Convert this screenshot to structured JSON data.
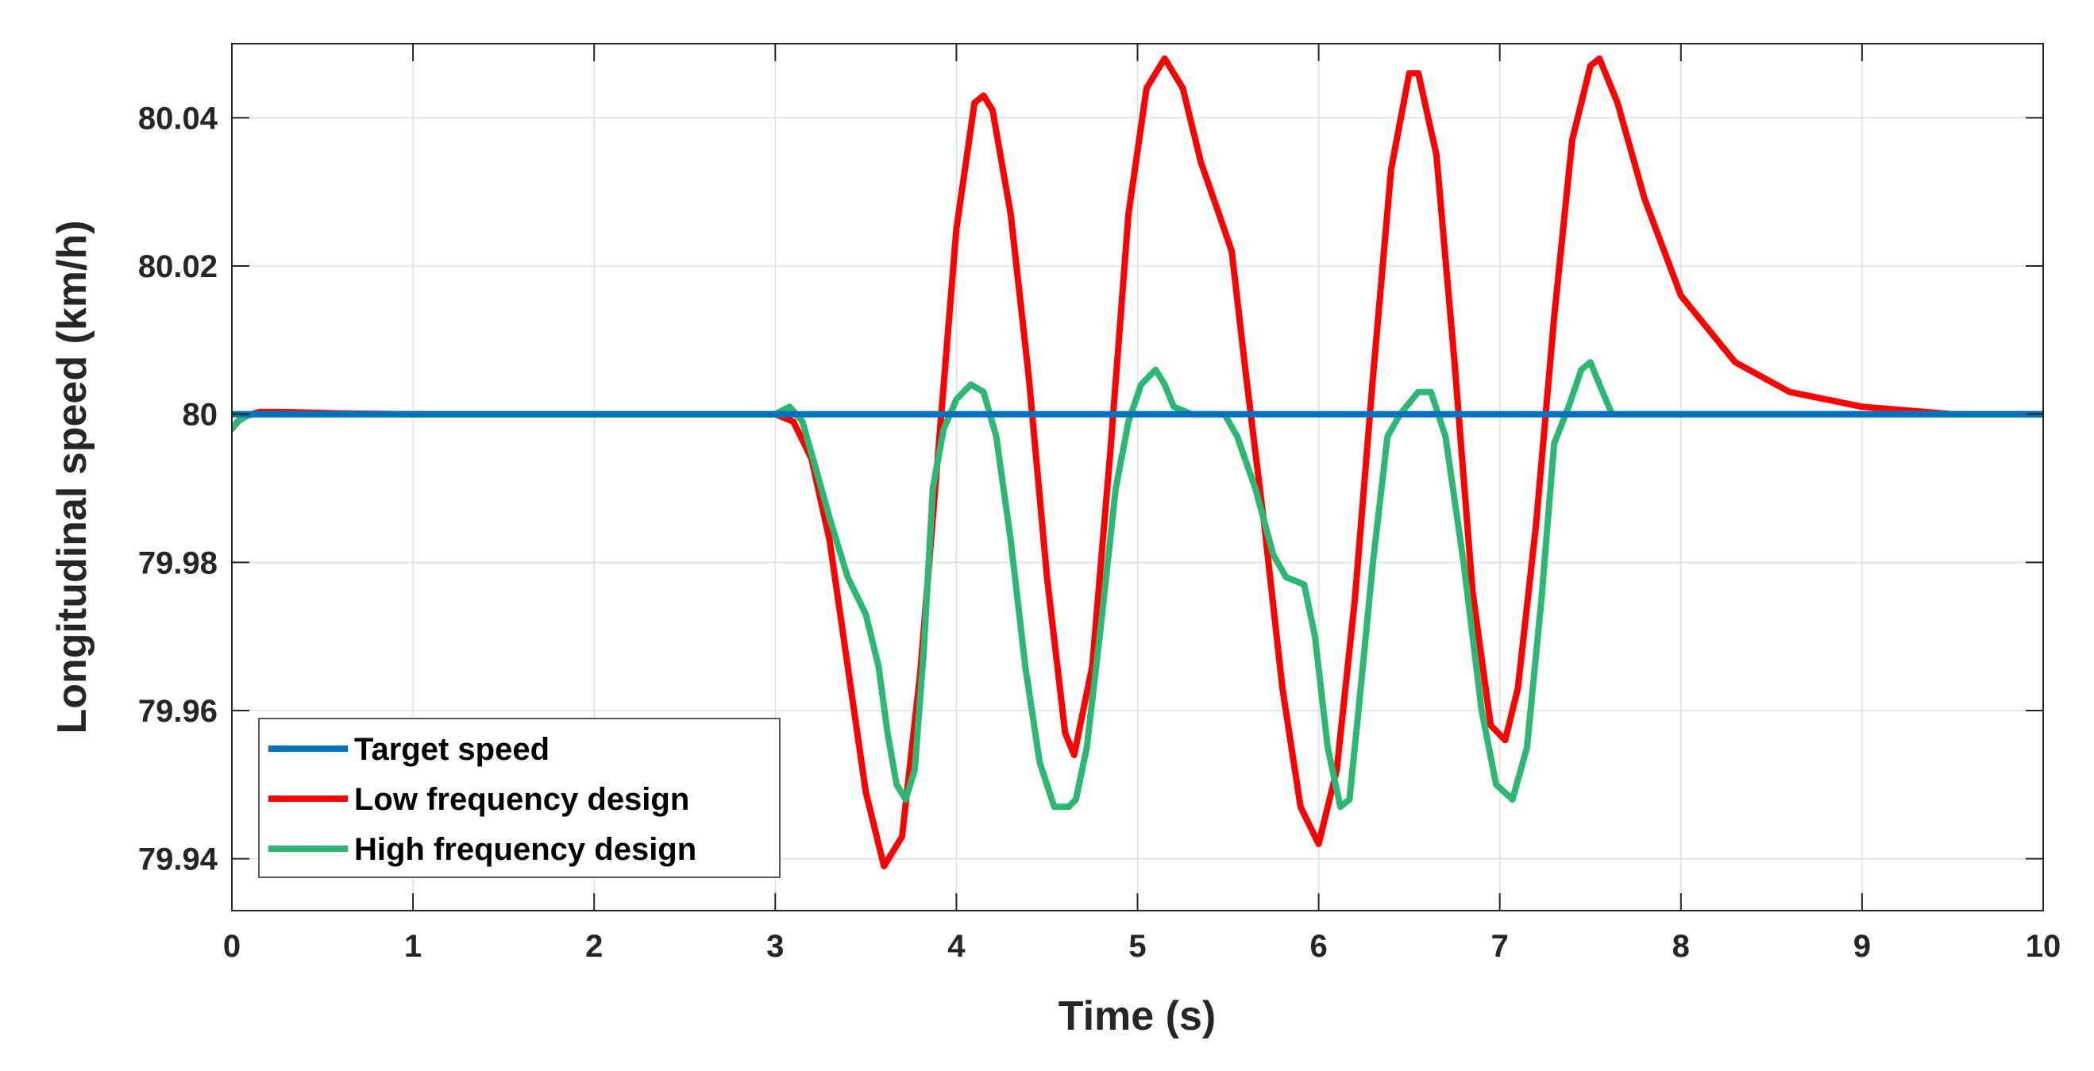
{
  "chart_data": {
    "type": "line",
    "title": "",
    "xlabel": "Time (s)",
    "ylabel": "Longitudinal speed (km/h)",
    "xlim": [
      0,
      10
    ],
    "ylim": [
      79.933,
      80.05
    ],
    "xticks": [
      0,
      1,
      2,
      3,
      4,
      5,
      6,
      7,
      8,
      9,
      10
    ],
    "yticks": [
      79.94,
      79.96,
      79.98,
      80,
      80.02,
      80.04
    ],
    "xtick_labels": [
      "0",
      "1",
      "2",
      "3",
      "4",
      "5",
      "6",
      "7",
      "8",
      "9",
      "10"
    ],
    "ytick_labels": [
      "79.94",
      "79.96",
      "79.98",
      "80",
      "80.02",
      "80.04"
    ],
    "grid": true,
    "legend_location": "bottom-left",
    "series": [
      {
        "name": "Target speed",
        "color": "#0072BD",
        "x": [
          0,
          10
        ],
        "y": [
          80.0,
          80.0
        ]
      },
      {
        "name": "Low frequency design",
        "color": "#FF0000",
        "x": [
          0,
          0.05,
          0.15,
          0.3,
          0.6,
          1,
          3.0,
          3.1,
          3.2,
          3.3,
          3.4,
          3.5,
          3.6,
          3.7,
          3.8,
          3.9,
          4.0,
          4.1,
          4.15,
          4.2,
          4.3,
          4.4,
          4.5,
          4.6,
          4.65,
          4.75,
          4.85,
          4.95,
          5.05,
          5.15,
          5.25,
          5.35,
          5.45,
          5.52,
          5.6,
          5.7,
          5.8,
          5.9,
          6.0,
          6.1,
          6.2,
          6.3,
          6.4,
          6.5,
          6.55,
          6.65,
          6.75,
          6.85,
          6.95,
          7.03,
          7.1,
          7.2,
          7.3,
          7.4,
          7.5,
          7.55,
          7.65,
          7.8,
          8.0,
          8.3,
          8.6,
          9.0,
          9.5,
          10
        ],
        "y": [
          79.998,
          79.9995,
          80.0003,
          80.0003,
          80.0001,
          80.0,
          80.0,
          79.999,
          79.994,
          79.983,
          79.966,
          79.949,
          79.939,
          79.943,
          79.965,
          79.995,
          80.025,
          80.042,
          80.043,
          80.041,
          80.027,
          80.005,
          79.978,
          79.957,
          79.954,
          79.966,
          79.995,
          80.027,
          80.044,
          80.048,
          80.044,
          80.034,
          80.027,
          80.022,
          80.005,
          79.985,
          79.963,
          79.947,
          79.942,
          79.952,
          79.975,
          80.005,
          80.033,
          80.046,
          80.046,
          80.035,
          80.007,
          79.976,
          79.958,
          79.956,
          79.963,
          79.985,
          80.013,
          80.037,
          80.047,
          80.048,
          80.042,
          80.029,
          80.016,
          80.007,
          80.003,
          80.001,
          80.0,
          80.0
        ]
      },
      {
        "name": "High frequency design",
        "color": "#2DB775",
        "x": [
          0,
          0.03,
          0.1,
          0.3,
          1,
          3.0,
          3.08,
          3.15,
          3.22,
          3.3,
          3.4,
          3.5,
          3.57,
          3.62,
          3.67,
          3.72,
          3.77,
          3.82,
          3.87,
          3.93,
          4.0,
          4.08,
          4.15,
          4.22,
          4.3,
          4.38,
          4.46,
          4.54,
          4.62,
          4.66,
          4.72,
          4.8,
          4.88,
          4.95,
          5.02,
          5.1,
          5.15,
          5.2,
          5.3,
          5.4,
          5.48,
          5.55,
          5.65,
          5.75,
          5.82,
          5.92,
          5.98,
          6.05,
          6.12,
          6.17,
          6.22,
          6.3,
          6.38,
          6.45,
          6.55,
          6.62,
          6.7,
          6.8,
          6.9,
          6.98,
          7.07,
          7.15,
          7.23,
          7.3,
          7.38,
          7.45,
          7.5,
          7.55,
          7.62,
          7.7,
          8.0,
          10
        ],
        "y": [
          79.998,
          79.999,
          80.0,
          80.0,
          80.0,
          80.0,
          80.001,
          79.999,
          79.993,
          79.986,
          79.978,
          79.973,
          79.966,
          79.957,
          79.95,
          79.948,
          79.952,
          79.968,
          79.99,
          79.998,
          80.002,
          80.004,
          80.003,
          79.997,
          79.983,
          79.966,
          79.953,
          79.947,
          79.947,
          79.948,
          79.955,
          79.972,
          79.99,
          79.999,
          80.004,
          80.006,
          80.004,
          80.001,
          80.0,
          80.0,
          80.0,
          79.997,
          79.99,
          79.981,
          79.978,
          79.977,
          79.97,
          79.955,
          79.947,
          79.948,
          79.96,
          79.98,
          79.997,
          80.0,
          80.003,
          80.003,
          79.997,
          79.98,
          79.96,
          79.95,
          79.948,
          79.955,
          79.975,
          79.996,
          80.001,
          80.006,
          80.007,
          80.004,
          80.0,
          80.0,
          80.0,
          80.0
        ]
      }
    ]
  }
}
